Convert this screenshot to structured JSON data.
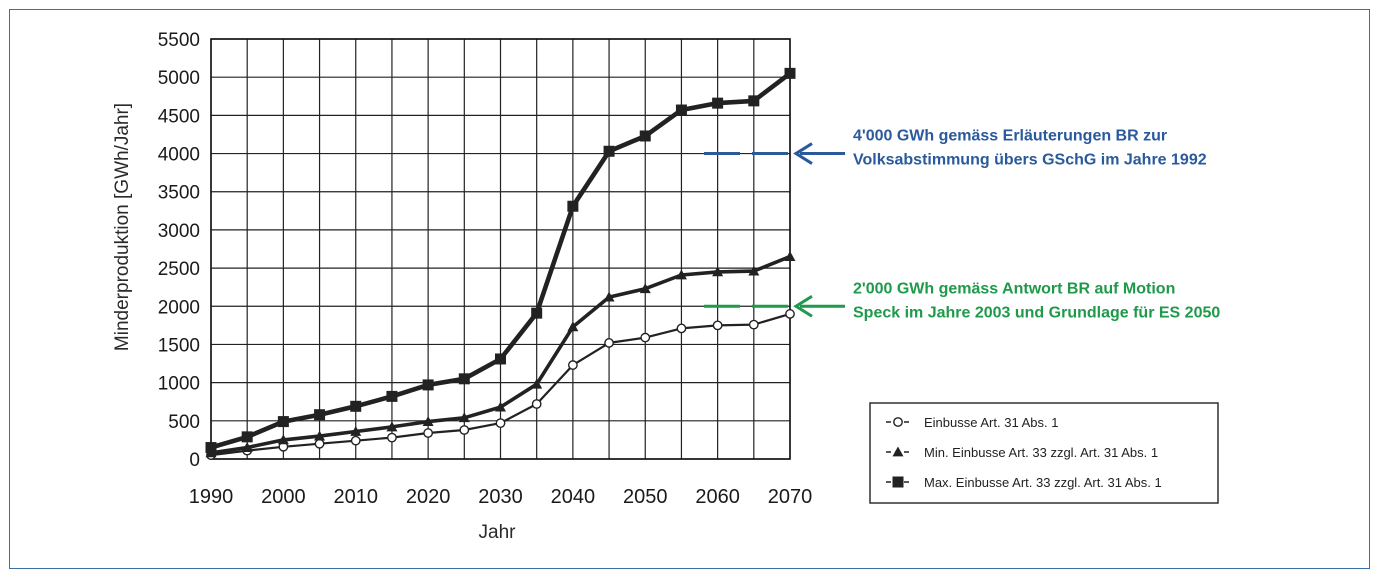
{
  "chart_data": {
    "type": "line",
    "xlabel": "Jahr",
    "ylabel": "Minderproduktion [GWh/Jahr]",
    "xlim": [
      1990,
      2070
    ],
    "ylim": [
      0,
      5500
    ],
    "x_ticks": [
      "1990",
      "2000",
      "2010",
      "2020",
      "2030",
      "2040",
      "2050",
      "2060",
      "2070"
    ],
    "y_ticks": [
      "0",
      "500",
      "1000",
      "1500",
      "2000",
      "2500",
      "3000",
      "3500",
      "4000",
      "4500",
      "5000",
      "5500"
    ],
    "grid": true,
    "legend_position": "bottom-right",
    "x": [
      1990,
      1995,
      2000,
      2005,
      2010,
      2015,
      2020,
      2025,
      2030,
      2035,
      2040,
      2045,
      2050,
      2055,
      2060,
      2065,
      2070
    ],
    "series": [
      {
        "name": "Einbusse Art. 31 Abs. 1",
        "marker": "open-circle",
        "values": [
          50,
          110,
          160,
          200,
          240,
          280,
          340,
          380,
          470,
          720,
          1230,
          1520,
          1590,
          1710,
          1750,
          1760,
          1900
        ]
      },
      {
        "name": "Min. Einbusse Art. 33 zzgl. Art. 31 Abs. 1",
        "marker": "triangle",
        "values": [
          80,
          150,
          250,
          300,
          360,
          420,
          490,
          540,
          680,
          980,
          1730,
          2120,
          2230,
          2410,
          2450,
          2460,
          2650
        ]
      },
      {
        "name": "Max. Einbusse Art. 33 zzgl. Art. 31 Abs. 1",
        "marker": "square",
        "values": [
          150,
          290,
          490,
          580,
          690,
          820,
          970,
          1050,
          1310,
          1910,
          3310,
          4030,
          4230,
          4570,
          4660,
          4690,
          5050
        ]
      }
    ],
    "annotations": [
      {
        "id": "blue",
        "lines": [
          "4'000 GWh gemäss Erläuterungen BR zur",
          "Volksabstimmung übers GSchG im Jahre 1992"
        ],
        "value": 4000,
        "color": "#2a5a9b"
      },
      {
        "id": "green",
        "lines": [
          "2'000 GWh gemäss Antwort BR auf Motion",
          "Speck im Jahre 2003 und Grundlage für ES 2050"
        ],
        "value": 2000,
        "color": "#1e9a4a"
      }
    ]
  }
}
